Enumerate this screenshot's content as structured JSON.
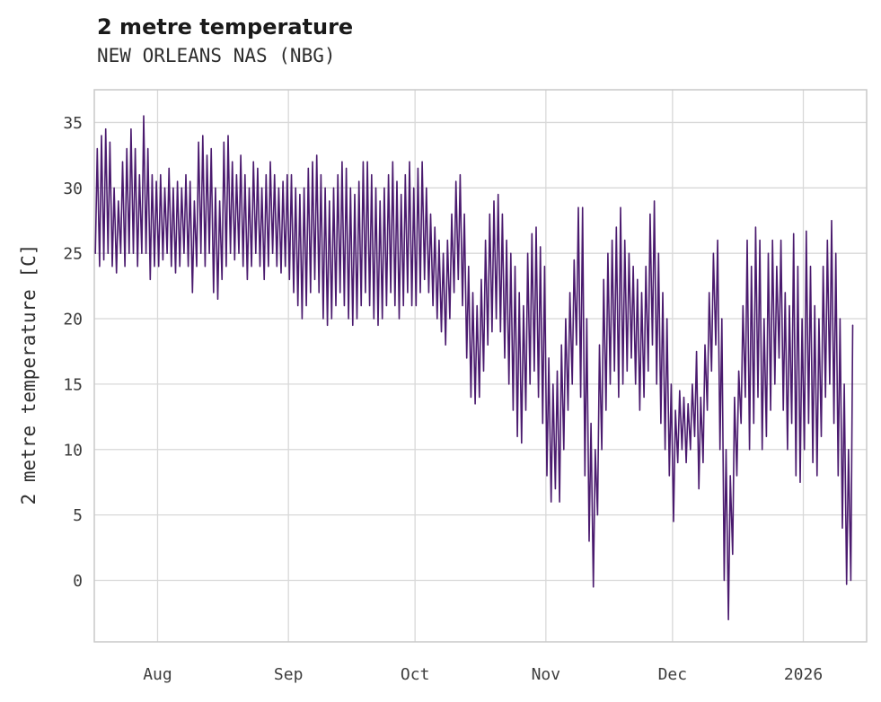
{
  "chart_data": {
    "type": "line",
    "title": "2 metre temperature",
    "subtitle": "NEW ORLEANS NAS (NBG)",
    "ylabel": "2 metre temperature [C]",
    "xlabel": "",
    "ylim": [
      -4.7,
      37.5
    ],
    "yticks": [
      0,
      5,
      10,
      15,
      20,
      25,
      30,
      35
    ],
    "xticks": [
      {
        "day": 15,
        "label": "Aug"
      },
      {
        "day": 46,
        "label": "Sep"
      },
      {
        "day": 76,
        "label": "Oct"
      },
      {
        "day": 107,
        "label": "Nov"
      },
      {
        "day": 137,
        "label": "Dec"
      },
      {
        "day": 168,
        "label": "2026"
      }
    ],
    "total_days": 183,
    "grid_on": true,
    "legend": "none",
    "line_color": "#4a1a6e",
    "grid_color": "#d8d8d8",
    "border_color": "#c9c9c9",
    "series": [
      {
        "name": "2 metre temperature",
        "unit": "C",
        "daily_min": [
          25,
          24,
          24.5,
          25,
          24,
          23.5,
          25,
          24,
          25,
          25,
          24,
          25,
          25,
          23,
          24,
          24,
          24.5,
          25,
          24,
          23.5,
          24,
          25,
          24,
          22,
          24,
          25,
          24,
          25,
          22,
          21.5,
          23,
          24,
          25,
          24.5,
          25,
          24,
          23,
          24,
          25,
          24,
          23,
          24,
          25,
          24,
          23.5,
          24,
          23,
          22,
          21,
          20,
          21,
          22,
          23,
          22,
          20,
          19.5,
          20,
          21,
          22,
          21,
          20,
          19.5,
          20,
          21,
          22,
          21,
          20,
          19.5,
          20,
          21,
          22,
          21,
          20,
          21,
          22,
          21,
          21,
          22,
          23,
          22,
          21,
          20,
          19,
          18,
          20,
          22,
          23,
          21,
          17,
          14,
          13.5,
          14,
          16,
          18,
          19,
          20,
          19,
          17,
          15,
          13,
          11,
          10.5,
          13,
          15,
          16,
          14,
          12,
          8,
          6,
          7,
          6,
          10,
          13,
          15,
          18,
          14,
          8,
          3,
          -0.5,
          5,
          10,
          13,
          15,
          16,
          14,
          15,
          16,
          17,
          15,
          13,
          14,
          16,
          18,
          15,
          12,
          10,
          8,
          4.5,
          9,
          10,
          9,
          10,
          11,
          7,
          9,
          13,
          16,
          18,
          10,
          0,
          -3,
          2,
          8,
          12,
          14,
          10,
          12,
          14,
          10,
          11,
          13,
          15,
          17,
          13,
          10,
          12,
          8,
          7.5,
          10,
          12,
          9,
          8,
          11,
          14,
          15,
          12,
          8,
          4,
          -0.3,
          0
        ],
        "daily_max": [
          33,
          34,
          34.5,
          33.5,
          30,
          29,
          32,
          33,
          34.5,
          33,
          31,
          35.5,
          33,
          31,
          30.5,
          31,
          30,
          31.5,
          30,
          30.5,
          30,
          31,
          30.5,
          29,
          33.5,
          34,
          32.5,
          33,
          30,
          29,
          33.5,
          34,
          32,
          31,
          32.5,
          31,
          30,
          32,
          31.5,
          30,
          31,
          32,
          31,
          30,
          30.5,
          31,
          31,
          30,
          29.5,
          30,
          31.5,
          32,
          32.5,
          31,
          30,
          29,
          30,
          31,
          32,
          31.5,
          30,
          29.5,
          30.5,
          32,
          32,
          31,
          30,
          29,
          30,
          31,
          32,
          30.5,
          29.5,
          31,
          32,
          30,
          31.5,
          32,
          30,
          28,
          27,
          26,
          25,
          26,
          28,
          30.5,
          31,
          28,
          24,
          22,
          21,
          23,
          26,
          28,
          29,
          29.5,
          28,
          26,
          25,
          24,
          22,
          21,
          25,
          26.5,
          27,
          25.5,
          24,
          17,
          15,
          16,
          18,
          20,
          22,
          24.5,
          28.5,
          28.5,
          20,
          12,
          10,
          18,
          23,
          25,
          26,
          27,
          28.5,
          26,
          25,
          24,
          23,
          22,
          24,
          28,
          29,
          25,
          22,
          20,
          15,
          13,
          14.5,
          14,
          13.5,
          15,
          17.5,
          14,
          18,
          22,
          25,
          26,
          20,
          10,
          8,
          14,
          16,
          21,
          26,
          24,
          27,
          26,
          20,
          25,
          26,
          24,
          26,
          22,
          21,
          26.5,
          24,
          20,
          26.7,
          24,
          21,
          20,
          24,
          26,
          27.5,
          25,
          20,
          15,
          10,
          19.5
        ]
      }
    ]
  }
}
